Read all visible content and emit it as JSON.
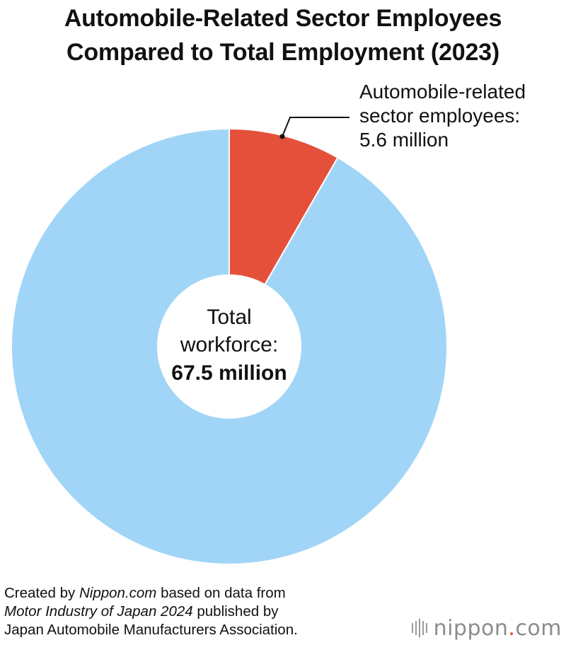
{
  "title": {
    "line1": "Automobile-Related Sector Employees",
    "line2": "Compared to Total Employment (2023)"
  },
  "chart_data": {
    "type": "pie",
    "total": 67.5,
    "unit": "million",
    "slices": [
      {
        "label": "Automobile-related sector employees",
        "value": 5.6,
        "color": "#e5503a"
      },
      {
        "value": 61.9,
        "color": "#a1d5f7"
      }
    ],
    "center_label": {
      "line1": "Total",
      "line2": "workforce:",
      "line3": "67.5 million"
    },
    "annotation": {
      "line1": "Automobile-related",
      "line2": "sector employees:",
      "line3": "5.6 million"
    }
  },
  "source": {
    "prefix": "Created by ",
    "site": "Nippon.com",
    "mid": " based on data from",
    "publication": "Motor Industry of Japan 2024",
    "suffix": " published by",
    "publisher": "Japan Automobile Manufacturers Association."
  },
  "logo": {
    "main": "nippon",
    "dot": ".",
    "tld": "com"
  }
}
